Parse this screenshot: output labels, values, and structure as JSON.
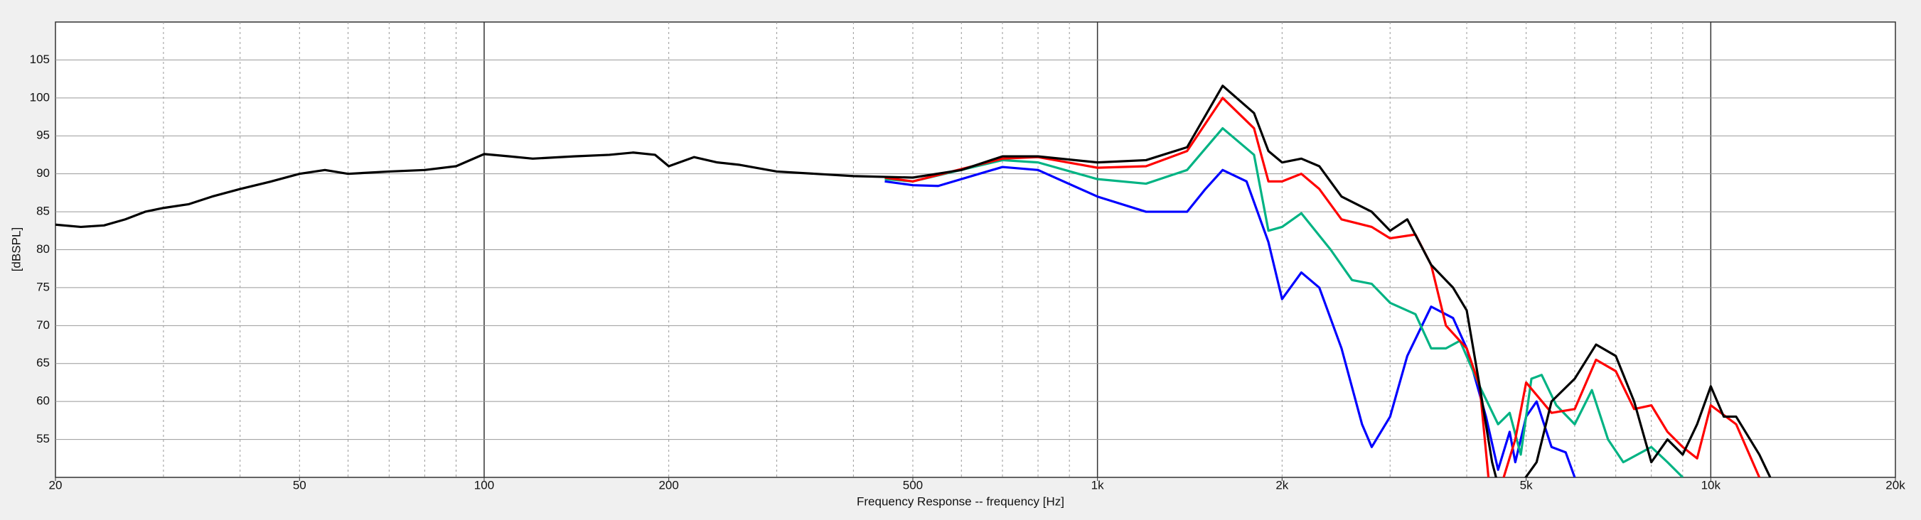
{
  "chart_data": {
    "type": "line",
    "xlabel": "Frequency Response -- frequency [Hz]",
    "ylabel": "[dBSPL]",
    "xscale": "log",
    "xlim": [
      20,
      20000
    ],
    "ylim": [
      50,
      110
    ],
    "xticks": [
      20,
      50,
      100,
      200,
      500,
      {
        "value": 1000,
        "label": "1k"
      },
      {
        "value": 2000,
        "label": "2k"
      },
      {
        "value": 5000,
        "label": "5k"
      },
      {
        "value": 10000,
        "label": "10k"
      },
      {
        "value": 20000,
        "label": "20k"
      }
    ],
    "yticks": [
      55,
      60,
      65,
      70,
      75,
      80,
      85,
      90,
      95,
      100,
      105
    ],
    "grid": true,
    "series": [
      {
        "color": "#000000",
        "x": [
          20,
          22,
          24,
          26,
          28,
          30,
          33,
          36,
          40,
          45,
          50,
          55,
          60,
          70,
          80,
          90,
          100,
          110,
          120,
          140,
          160,
          175,
          190,
          200,
          220,
          240,
          260,
          300,
          400,
          500,
          600,
          700,
          800,
          1000,
          1200,
          1400,
          1600,
          1800,
          1900,
          2000,
          2150,
          2300,
          2500,
          2800,
          3000,
          3200,
          3500,
          3800,
          4000,
          4200,
          4400,
          4600,
          5200,
          5500,
          6000,
          6500,
          7000,
          7500,
          8000,
          8500,
          9000,
          9500,
          10000,
          10500,
          11000,
          12000,
          12500
        ],
        "values": [
          83.3,
          83,
          83.2,
          84,
          85,
          85.5,
          86,
          87,
          88,
          89,
          90,
          90.5,
          90,
          90.3,
          90.5,
          91,
          92.6,
          92.3,
          92,
          92.3,
          92.5,
          92.8,
          92.5,
          91,
          92.2,
          91.5,
          91.2,
          90.3,
          89.7,
          89.5,
          90.5,
          92.3,
          92.3,
          91.5,
          91.8,
          93.5,
          101.6,
          98,
          93,
          91.5,
          92,
          91,
          87,
          85,
          82.5,
          84,
          78,
          75,
          72,
          62,
          52,
          46,
          52,
          60,
          63,
          67.5,
          66,
          60,
          52,
          55,
          53,
          57,
          62,
          58,
          58,
          53,
          50
        ]
      },
      {
        "color": "#ff0000",
        "x": [
          450,
          500,
          700,
          800,
          1000,
          1200,
          1400,
          1600,
          1800,
          1900,
          2000,
          2150,
          2300,
          2500,
          2800,
          3000,
          3300,
          3500,
          3700,
          4000,
          4200,
          4400,
          4800,
          5000,
          5500,
          6000,
          6500,
          7000,
          7500,
          8000,
          8500,
          9000,
          9500,
          10000,
          11000,
          12000,
          12500
        ],
        "values": [
          89.5,
          89,
          92,
          92.2,
          90.8,
          91,
          93,
          100,
          96,
          89,
          89,
          90,
          88,
          84,
          83,
          81.5,
          82,
          78,
          70,
          67,
          62,
          45,
          55,
          62.5,
          58.5,
          59,
          65.5,
          64,
          59,
          59.5,
          56,
          54,
          52.5,
          59.5,
          57,
          50,
          45
        ]
      },
      {
        "color": "#00b383",
        "x": [
          450,
          500,
          700,
          800,
          1000,
          1200,
          1400,
          1600,
          1800,
          1900,
          2000,
          2150,
          2400,
          2600,
          2800,
          3000,
          3300,
          3500,
          3700,
          3900,
          4200,
          4500,
          4700,
          4900,
          5100,
          5300,
          5600,
          6000,
          6400,
          6800,
          7200,
          8000,
          8500,
          9000
        ],
        "values": [
          89.3,
          89,
          91.8,
          91.5,
          89.3,
          88.7,
          90.5,
          96,
          92.5,
          82.5,
          83,
          84.8,
          80,
          76,
          75.5,
          73,
          71.5,
          67,
          67,
          68,
          62,
          57,
          58.5,
          53,
          63,
          63.5,
          59.5,
          57,
          61.5,
          55,
          52,
          54,
          52,
          50
        ]
      },
      {
        "color": "#0000ff",
        "x": [
          450,
          500,
          550,
          700,
          800,
          1000,
          1200,
          1400,
          1500,
          1600,
          1750,
          1900,
          2000,
          2150,
          2300,
          2500,
          2700,
          2800,
          3000,
          3200,
          3500,
          3800,
          4000,
          4300,
          4500,
          4700,
          4800,
          5000,
          5200,
          5500,
          5800,
          6000
        ],
        "values": [
          89,
          88.5,
          88.4,
          90.9,
          90.5,
          87,
          85,
          85,
          88,
          90.5,
          89,
          81,
          73.5,
          77,
          75,
          67,
          57,
          54,
          58,
          66,
          72.5,
          71,
          67,
          58,
          51,
          56,
          52,
          58,
          60,
          54,
          53.3,
          50
        ]
      }
    ]
  }
}
